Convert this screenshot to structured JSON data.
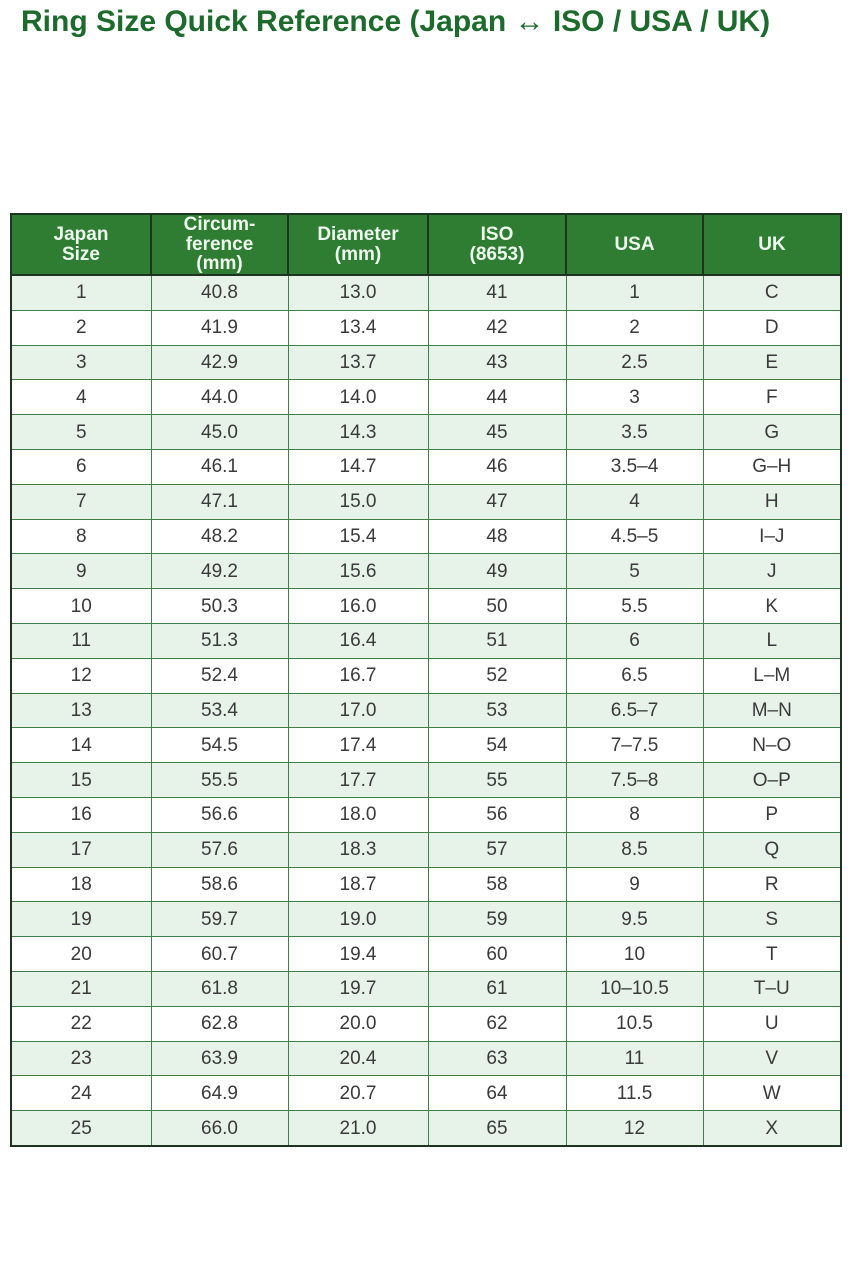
{
  "title": "Ring Size Quick Reference (Japan ↔ ISO / USA / UK)",
  "colors": {
    "title": "#1d6b2c",
    "header_bg": "#2e7d32",
    "header_text": "#eef7ee",
    "row_alternate": "#e7f3e8",
    "inner_border": "#3f8048",
    "outer_border": "#1f3322",
    "cell_text": "#3a3a3a"
  },
  "table": {
    "display_columns": [
      "Japan\nSize",
      "Circum-\nference\n(mm)",
      "Diameter\n(mm)",
      "ISO\n(8653)",
      "USA",
      "UK"
    ]
  },
  "chart_data": {
    "type": "table",
    "title": "Ring Size Quick Reference (Japan ↔ ISO / USA / UK)",
    "columns": [
      "Japan Size",
      "Circumference (mm)",
      "Diameter (mm)",
      "ISO (8653)",
      "USA",
      "UK"
    ],
    "rows": [
      [
        "1",
        "40.8",
        "13.0",
        "41",
        "1",
        "C"
      ],
      [
        "2",
        "41.9",
        "13.4",
        "42",
        "2",
        "D"
      ],
      [
        "3",
        "42.9",
        "13.7",
        "43",
        "2.5",
        "E"
      ],
      [
        "4",
        "44.0",
        "14.0",
        "44",
        "3",
        "F"
      ],
      [
        "5",
        "45.0",
        "14.3",
        "45",
        "3.5",
        "G"
      ],
      [
        "6",
        "46.1",
        "14.7",
        "46",
        "3.5–4",
        "G–H"
      ],
      [
        "7",
        "47.1",
        "15.0",
        "47",
        "4",
        "H"
      ],
      [
        "8",
        "48.2",
        "15.4",
        "48",
        "4.5–5",
        "I–J"
      ],
      [
        "9",
        "49.2",
        "15.6",
        "49",
        "5",
        "J"
      ],
      [
        "10",
        "50.3",
        "16.0",
        "50",
        "5.5",
        "K"
      ],
      [
        "11",
        "51.3",
        "16.4",
        "51",
        "6",
        "L"
      ],
      [
        "12",
        "52.4",
        "16.7",
        "52",
        "6.5",
        "L–M"
      ],
      [
        "13",
        "53.4",
        "17.0",
        "53",
        "6.5–7",
        "M–N"
      ],
      [
        "14",
        "54.5",
        "17.4",
        "54",
        "7–7.5",
        "N–O"
      ],
      [
        "15",
        "55.5",
        "17.7",
        "55",
        "7.5–8",
        "O–P"
      ],
      [
        "16",
        "56.6",
        "18.0",
        "56",
        "8",
        "P"
      ],
      [
        "17",
        "57.6",
        "18.3",
        "57",
        "8.5",
        "Q"
      ],
      [
        "18",
        "58.6",
        "18.7",
        "58",
        "9",
        "R"
      ],
      [
        "19",
        "59.7",
        "19.0",
        "59",
        "9.5",
        "S"
      ],
      [
        "20",
        "60.7",
        "19.4",
        "60",
        "10",
        "T"
      ],
      [
        "21",
        "61.8",
        "19.7",
        "61",
        "10–10.5",
        "T–U"
      ],
      [
        "22",
        "62.8",
        "20.0",
        "62",
        "10.5",
        "U"
      ],
      [
        "23",
        "63.9",
        "20.4",
        "63",
        "11",
        "V"
      ],
      [
        "24",
        "64.9",
        "20.7",
        "64",
        "11.5",
        "W"
      ],
      [
        "25",
        "66.0",
        "21.0",
        "65",
        "12",
        "X"
      ]
    ]
  }
}
